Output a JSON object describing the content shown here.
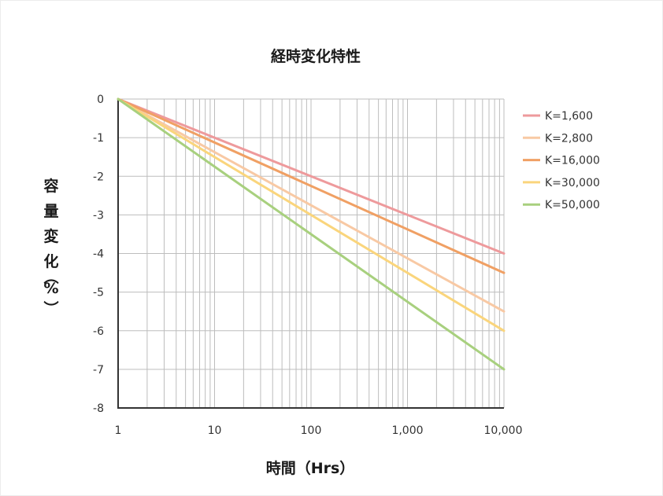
{
  "chart_data": {
    "type": "line",
    "title": "経時変化特性",
    "xlabel": "時間（Hrs）",
    "ylabel": "容量変化（%）",
    "x_scale": "log",
    "xlim": [
      1,
      10000
    ],
    "ylim": [
      -8,
      0
    ],
    "x_ticks": [
      {
        "value": 1,
        "label": "1"
      },
      {
        "value": 10,
        "label": "10"
      },
      {
        "value": 100,
        "label": "100"
      },
      {
        "value": 1000,
        "label": "1,000"
      },
      {
        "value": 10000,
        "label": "10,000"
      }
    ],
    "y_ticks": [
      {
        "value": 0,
        "label": "0"
      },
      {
        "value": -1,
        "label": "-1"
      },
      {
        "value": -2,
        "label": "-2"
      },
      {
        "value": -3,
        "label": "-3"
      },
      {
        "value": -4,
        "label": "-4"
      },
      {
        "value": -5,
        "label": "-5"
      },
      {
        "value": -6,
        "label": "-6"
      },
      {
        "value": -7,
        "label": "-7"
      },
      {
        "value": -8,
        "label": "-8"
      }
    ],
    "grid": true,
    "legend_position": "right",
    "series": [
      {
        "name": "K=1,600",
        "color": "#ee9a9c",
        "x": [
          1,
          10000
        ],
        "values": [
          0,
          -4.0
        ]
      },
      {
        "name": "K=2,800",
        "color": "#f8c9a4",
        "x": [
          1,
          10000
        ],
        "values": [
          0,
          -5.5
        ]
      },
      {
        "name": "K=16,000",
        "color": "#f0a064",
        "x": [
          1,
          10000
        ],
        "values": [
          0,
          -4.5
        ]
      },
      {
        "name": "K=30,000",
        "color": "#fad57c",
        "x": [
          1,
          10000
        ],
        "values": [
          0,
          -6.0
        ]
      },
      {
        "name": "K=50,000",
        "color": "#a8d07e",
        "x": [
          1,
          10000
        ],
        "values": [
          0,
          -7.0
        ]
      }
    ]
  }
}
